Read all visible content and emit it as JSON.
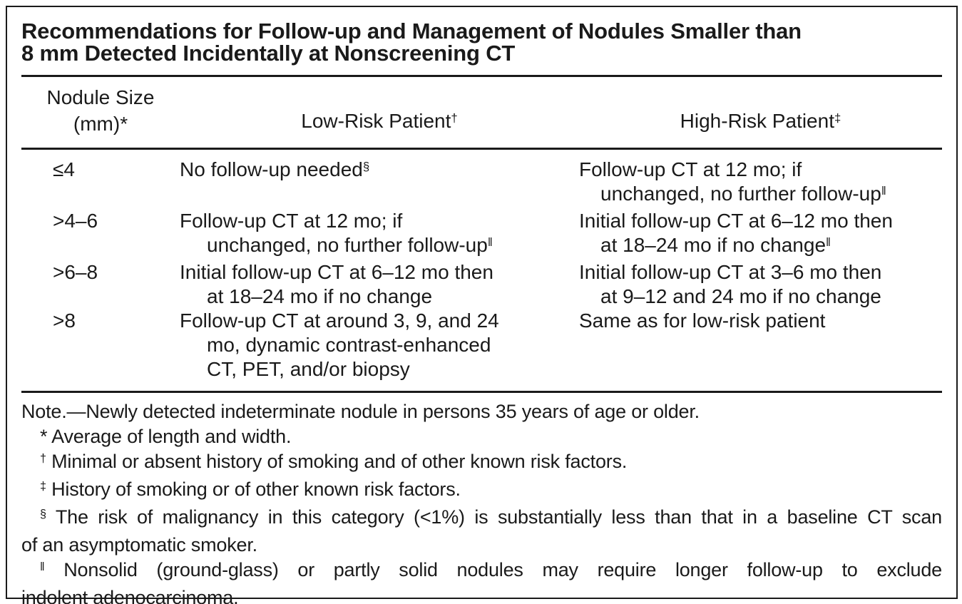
{
  "title": {
    "line1": "Recommendations for Follow-up and Management of Nodules Smaller than",
    "line2": "8 mm Detected Incidentally at Nonscreening CT"
  },
  "table": {
    "header": {
      "col1_line1": "Nodule Size",
      "col1_line2": "(mm)*",
      "col2": "Low-Risk Patient",
      "col2_sup": "†",
      "col3": "High-Risk Patient",
      "col3_sup": "‡"
    },
    "rows": [
      {
        "size": "≤4",
        "low_l1": "No follow-up needed",
        "low_l1_sup": "§",
        "high_l1": "Follow-up CT at 12 mo; if",
        "high_l2": "unchanged, no further follow-up",
        "high_l2_sup": "‖"
      },
      {
        "size": ">4–6",
        "low_l1": "Follow-up CT at 12 mo; if",
        "low_l2": "unchanged, no further follow-up",
        "low_l2_sup": "‖",
        "high_l1": "Initial follow-up CT at 6–12 mo then",
        "high_l2": "at 18–24 mo if no change",
        "high_l2_sup": "‖"
      },
      {
        "size": ">6–8",
        "low_l1": "Initial follow-up CT at 6–12 mo then",
        "low_l2": "at 18–24 mo if no change",
        "high_l1": "Initial follow-up CT at 3–6 mo then",
        "high_l2": "at 9–12 and 24 mo if no change"
      },
      {
        "size": ">8",
        "low_l1": "Follow-up CT at around 3, 9, and 24",
        "low_l2": "mo, dynamic contrast-enhanced",
        "low_l3": "CT, PET, and/or biopsy",
        "high_l1": "Same as for low-risk patient"
      }
    ]
  },
  "notes": {
    "note": "Note.—Newly detected indeterminate nodule in persons 35 years of age or older.",
    "star_symbol": "*",
    "star_text": "Average of length and width.",
    "dagger_symbol": "†",
    "dagger_text": "Minimal or absent history of smoking and of other known risk factors.",
    "ddagger_symbol": "‡",
    "ddagger_text": "History of smoking or of other known risk factors.",
    "section_symbol": "§",
    "section_line1": "The risk of malignancy in this category (<1%) is substantially less than that in a baseline CT scan",
    "section_line2": "of an asymptomatic smoker.",
    "dbar_symbol": "‖",
    "dbar_line1": "Nonsolid (ground-glass) or partly solid nodules may require longer follow-up to exclude",
    "dbar_line2": "indolent adenocarcinoma."
  },
  "colors": {
    "text": "#1a1a1a",
    "background": "#ffffff",
    "border": "#000000"
  }
}
